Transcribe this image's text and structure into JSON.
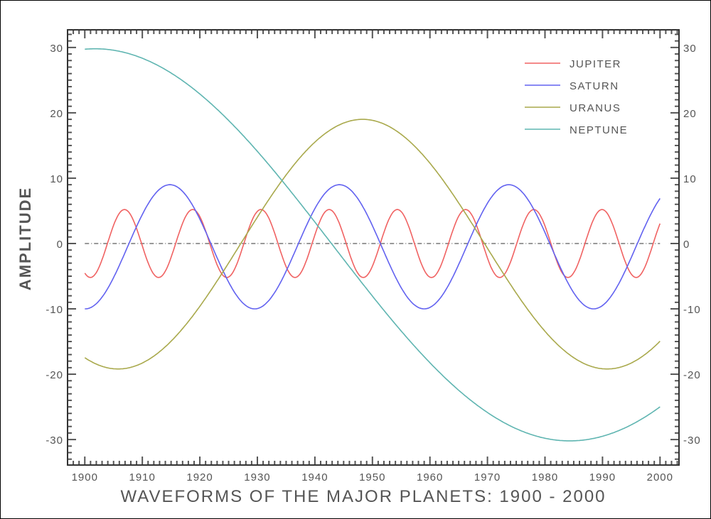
{
  "chart_data": {
    "type": "line",
    "title": "WAVEFORMS OF THE MAJOR PLANETS: 1900 - 2000",
    "xlabel": "",
    "ylabel": "AMPLITUDE",
    "xlim": [
      1897,
      2003.3
    ],
    "ylim": [
      -33.9,
      32.7
    ],
    "xticks": [
      1900,
      1910,
      1920,
      1930,
      1940,
      1950,
      1960,
      1970,
      1980,
      1990,
      2000
    ],
    "yticks": [
      -30,
      -20,
      -10,
      0,
      10,
      20,
      30
    ],
    "x_range": [
      1900,
      2000
    ],
    "legend_position": "top-right",
    "zero_line": "dash-dot",
    "series": [
      {
        "name": "JUPITER",
        "color": "#f06262",
        "model": "sinusoid",
        "amplitude": 5.2,
        "offset": 0,
        "period_years": 11.86,
        "peak_year": 1906.9
      },
      {
        "name": "SATURN",
        "color": "#6262f0",
        "model": "sinusoid",
        "amplitude": 9.5,
        "offset": -0.5,
        "period_years": 29.46,
        "peak_year": 1914.8
      },
      {
        "name": "URANUS",
        "color": "#a9a94c",
        "model": "sinusoid",
        "amplitude": 19.1,
        "offset": -0.1,
        "period_years": 85,
        "peak_year": 1948.3
      },
      {
        "name": "NEPTUNE",
        "color": "#5fb5b1",
        "model": "sinusoid",
        "amplitude": 30,
        "offset": -0.2,
        "period_years": 165,
        "peak_year": 1901.8
      }
    ]
  }
}
